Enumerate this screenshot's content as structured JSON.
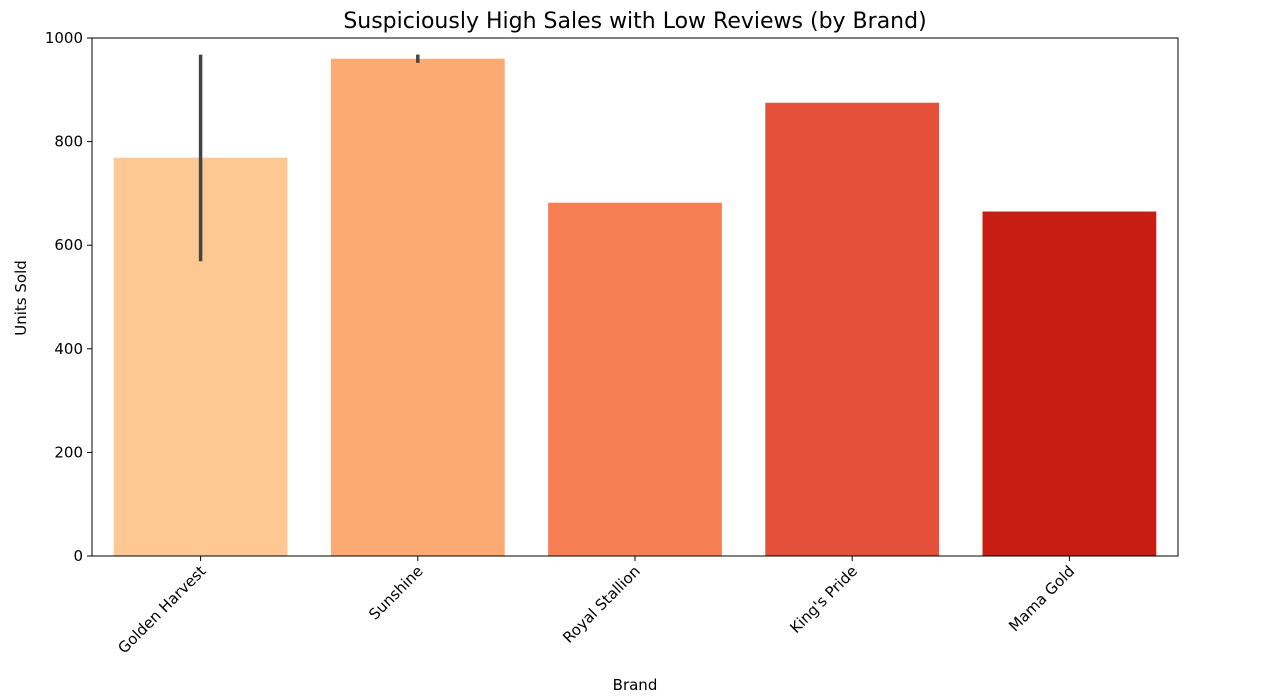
{
  "chart_data": {
    "type": "bar",
    "title": "Suspiciously High Sales with Low Reviews (by Brand)",
    "xlabel": "Brand",
    "ylabel": "Units Sold",
    "ylim": [
      0,
      1000
    ],
    "yticks": [
      0,
      200,
      400,
      600,
      800,
      1000
    ],
    "categories": [
      "Golden Harvest",
      "Sunshine",
      "Royal Stallion",
      "King's Pride",
      "Mama Gold"
    ],
    "values": [
      769,
      960,
      682,
      875,
      665
    ],
    "error_bars": [
      {
        "low": 569,
        "high": 968
      },
      {
        "low": 952,
        "high": 968
      },
      null,
      null,
      null
    ],
    "colors": [
      "#fdc892",
      "#fca972",
      "#f67f53",
      "#e4503a",
      "#c81d12"
    ],
    "error_bar_color": "#444444",
    "grid": false,
    "legend": "none"
  }
}
